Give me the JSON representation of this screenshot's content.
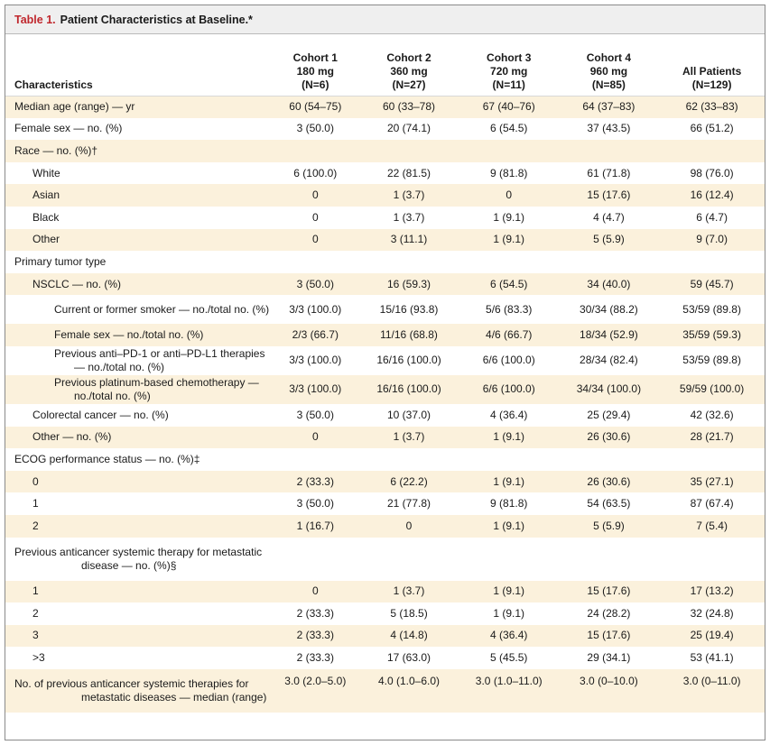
{
  "table": {
    "label": "Table 1.",
    "title": "Patient Characteristics at Baseline.*",
    "header": {
      "characteristics": "Characteristics",
      "columns": [
        {
          "l1": "Cohort 1",
          "l2": "180 mg",
          "l3": "(N=6)"
        },
        {
          "l1": "Cohort 2",
          "l2": "360 mg",
          "l3": "(N=27)"
        },
        {
          "l1": "Cohort 3",
          "l2": "720 mg",
          "l3": "(N=11)"
        },
        {
          "l1": "Cohort 4",
          "l2": "960 mg",
          "l3": "(N=85)"
        },
        {
          "l1": "",
          "l2": "All Patients",
          "l3": "(N=129)"
        }
      ]
    },
    "rows": [
      {
        "label": "Median age (range) — yr",
        "values": [
          "60 (54–75)",
          "60 (33–78)",
          "67 (40–76)",
          "64 (37–83)",
          "62 (33–83)"
        ]
      },
      {
        "label": "Female sex — no. (%)",
        "values": [
          "3 (50.0)",
          "20 (74.1)",
          "6 (54.5)",
          "37 (43.5)",
          "66 (51.2)"
        ]
      },
      {
        "label": "Race — no. (%)†",
        "values": [
          "",
          "",
          "",
          "",
          ""
        ]
      },
      {
        "label": "White",
        "values": [
          "6 (100.0)",
          "22 (81.5)",
          "9 (81.8)",
          "61 (71.8)",
          "98 (76.0)"
        ]
      },
      {
        "label": "Asian",
        "values": [
          "0",
          "1 (3.7)",
          "0",
          "15 (17.6)",
          "16 (12.4)"
        ]
      },
      {
        "label": "Black",
        "values": [
          "0",
          "1 (3.7)",
          "1 (9.1)",
          "4 (4.7)",
          "6 (4.7)"
        ]
      },
      {
        "label": "Other",
        "values": [
          "0",
          "3 (11.1)",
          "1 (9.1)",
          "5 (5.9)",
          "9 (7.0)"
        ]
      },
      {
        "label": "Primary tumor type",
        "values": [
          "",
          "",
          "",
          "",
          ""
        ]
      },
      {
        "label": "NSCLC — no. (%)",
        "values": [
          "3 (50.0)",
          "16 (59.3)",
          "6 (54.5)",
          "34 (40.0)",
          "59 (45.7)"
        ]
      },
      {
        "label": "Current or former smoker — no./total no. (%)",
        "values": [
          "3/3 (100.0)",
          "15/16 (93.8)",
          "5/6 (83.3)",
          "30/34 (88.2)",
          "53/59 (89.8)"
        ]
      },
      {
        "label": "Female sex — no./total no. (%)",
        "values": [
          "2/3 (66.7)",
          "11/16 (68.8)",
          "4/6 (66.7)",
          "18/34 (52.9)",
          "35/59 (59.3)"
        ]
      },
      {
        "label": "Previous anti–PD-1 or anti–PD-L1 therapies — no./total no. (%)",
        "values": [
          "3/3 (100.0)",
          "16/16 (100.0)",
          "6/6 (100.0)",
          "28/34 (82.4)",
          "53/59 (89.8)"
        ]
      },
      {
        "label": "Previous platinum-based chemotherapy — no./total no. (%)",
        "values": [
          "3/3 (100.0)",
          "16/16 (100.0)",
          "6/6 (100.0)",
          "34/34 (100.0)",
          "59/59 (100.0)"
        ]
      },
      {
        "label": "Colorectal cancer — no. (%)",
        "values": [
          "3 (50.0)",
          "10 (37.0)",
          "4 (36.4)",
          "25 (29.4)",
          "42 (32.6)"
        ]
      },
      {
        "label": "Other — no. (%)",
        "values": [
          "0",
          "1 (3.7)",
          "1 (9.1)",
          "26 (30.6)",
          "28 (21.7)"
        ]
      },
      {
        "label": "ECOG performance status — no. (%)‡",
        "values": [
          "",
          "",
          "",
          "",
          ""
        ]
      },
      {
        "label": "0",
        "values": [
          "2 (33.3)",
          "6 (22.2)",
          "1 (9.1)",
          "26 (30.6)",
          "35 (27.1)"
        ]
      },
      {
        "label": "1",
        "values": [
          "3 (50.0)",
          "21 (77.8)",
          "9 (81.8)",
          "54 (63.5)",
          "87 (67.4)"
        ]
      },
      {
        "label": "2",
        "values": [
          "1 (16.7)",
          "0",
          "1 (9.1)",
          "5 (5.9)",
          "7 (5.4)"
        ]
      },
      {
        "label": "Previous anticancer systemic therapy for metastatic disease — no. (%)§",
        "values": [
          "",
          "",
          "",
          "",
          ""
        ]
      },
      {
        "label": "1",
        "values": [
          "0",
          "1 (3.7)",
          "1 (9.1)",
          "15 (17.6)",
          "17 (13.2)"
        ]
      },
      {
        "label": "2",
        "values": [
          "2 (33.3)",
          "5 (18.5)",
          "1 (9.1)",
          "24 (28.2)",
          "32 (24.8)"
        ]
      },
      {
        "label": "3",
        "values": [
          "2 (33.3)",
          "4 (14.8)",
          "4 (36.4)",
          "15 (17.6)",
          "25 (19.4)"
        ]
      },
      {
        "label": ">3",
        "values": [
          "2 (33.3)",
          "17 (63.0)",
          "5 (45.5)",
          "29 (34.1)",
          "53 (41.1)"
        ]
      },
      {
        "label": "No. of previous anticancer systemic therapies for metastatic diseases — median (range)",
        "values": [
          "3.0 (2.0–5.0)",
          "4.0 (1.0–6.0)",
          "3.0 (1.0–11.0)",
          "3.0 (0–10.0)",
          "3.0 (0–11.0)"
        ]
      }
    ]
  }
}
